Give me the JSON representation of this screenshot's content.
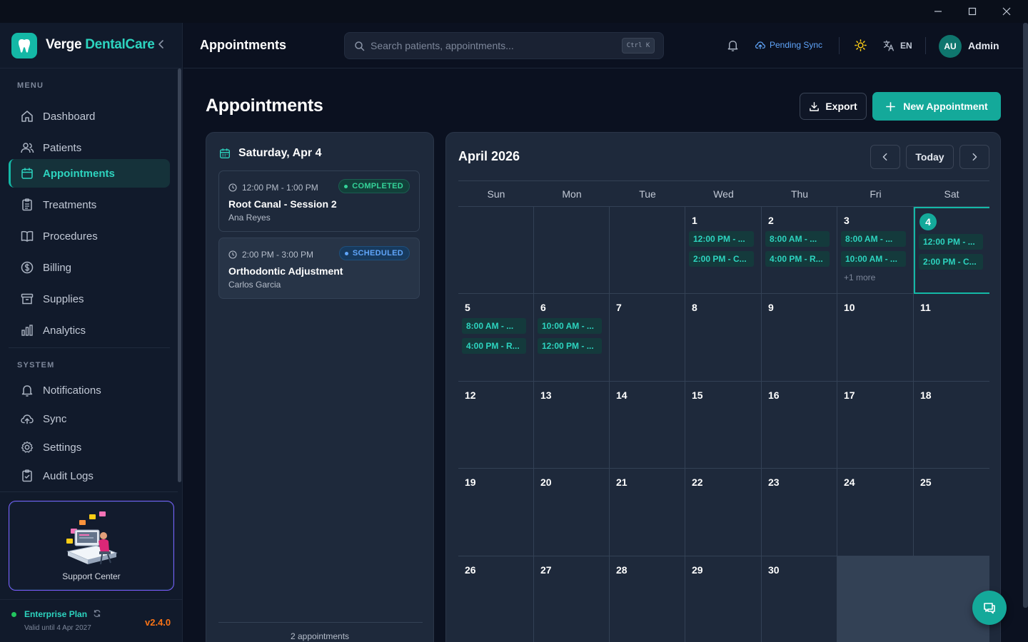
{
  "window": {
    "controls": [
      "minimize",
      "maximize",
      "close"
    ]
  },
  "brand": {
    "name_primary": "Verge",
    "name_accent": "DentalCare"
  },
  "sidebar": {
    "menu_label": "MENU",
    "menu_items": [
      {
        "label": "Dashboard",
        "icon": "home-icon"
      },
      {
        "label": "Patients",
        "icon": "users-icon"
      },
      {
        "label": "Appointments",
        "icon": "calendar-icon",
        "active": true
      },
      {
        "label": "Treatments",
        "icon": "clipboard-icon"
      },
      {
        "label": "Procedures",
        "icon": "book-icon"
      },
      {
        "label": "Billing",
        "icon": "dollar-icon"
      },
      {
        "label": "Supplies",
        "icon": "archive-icon"
      },
      {
        "label": "Analytics",
        "icon": "bar-chart-icon"
      }
    ],
    "system_label": "SYSTEM",
    "system_items": [
      {
        "label": "Notifications",
        "icon": "bell-icon"
      },
      {
        "label": "Sync",
        "icon": "cloud-upload-icon"
      },
      {
        "label": "Settings",
        "icon": "gear-icon"
      },
      {
        "label": "Audit Logs",
        "icon": "clipboard-check-icon"
      }
    ],
    "support_label": "Support Center",
    "plan_name": "Enterprise Plan",
    "plan_valid": "Valid until 4 Apr 2027",
    "version": "v2.4.0"
  },
  "header": {
    "title": "Appointments",
    "search_placeholder": "Search patients, appointments...",
    "search_shortcut": "Ctrl K",
    "sync_status": "Pending Sync",
    "language": "EN",
    "avatar_initials": "AU",
    "user_name": "Admin"
  },
  "main": {
    "title": "Appointments",
    "export_label": "Export",
    "new_label": "New Appointment"
  },
  "day_panel": {
    "date_label": "Saturday, Apr 4",
    "appointments": [
      {
        "time": "12:00 PM - 1:00 PM",
        "status": "COMPLETED",
        "title": "Root Canal - Session 2",
        "patient": "Ana Reyes"
      },
      {
        "time": "2:00 PM - 3:00 PM",
        "status": "SCHEDULED",
        "title": "Orthodontic Adjustment",
        "patient": "Carlos Garcia"
      }
    ],
    "footer": "2 appointments"
  },
  "calendar": {
    "month_label": "April 2026",
    "today_label": "Today",
    "weekdays": [
      "Sun",
      "Mon",
      "Tue",
      "Wed",
      "Thu",
      "Fri",
      "Sat"
    ],
    "selected_day": 4,
    "weeks": [
      [
        null,
        null,
        null,
        {
          "day": "1",
          "events": [
            "12:00 PM - ...",
            "2:00 PM - C..."
          ]
        },
        {
          "day": "2",
          "events": [
            "8:00 AM - ...",
            "4:00 PM - R..."
          ]
        },
        {
          "day": "3",
          "events": [
            "8:00 AM - ...",
            "10:00 AM - ..."
          ],
          "more": "+1 more"
        },
        {
          "day": "4",
          "events": [
            "12:00 PM - ...",
            "2:00 PM - C..."
          ],
          "selected": true
        }
      ],
      [
        {
          "day": "5",
          "events": [
            "8:00 AM - ...",
            "4:00 PM - R..."
          ]
        },
        {
          "day": "6",
          "events": [
            "10:00 AM - ...",
            "12:00 PM - ..."
          ]
        },
        {
          "day": "7",
          "events": []
        },
        {
          "day": "8",
          "events": []
        },
        {
          "day": "9",
          "events": []
        },
        {
          "day": "10",
          "events": []
        },
        {
          "day": "11",
          "events": []
        }
      ],
      [
        {
          "day": "12",
          "events": []
        },
        {
          "day": "13",
          "events": []
        },
        {
          "day": "14",
          "events": []
        },
        {
          "day": "15",
          "events": []
        },
        {
          "day": "16",
          "events": []
        },
        {
          "day": "17",
          "events": []
        },
        {
          "day": "18",
          "events": []
        }
      ],
      [
        {
          "day": "19",
          "events": []
        },
        {
          "day": "20",
          "events": []
        },
        {
          "day": "21",
          "events": []
        },
        {
          "day": "22",
          "events": []
        },
        {
          "day": "23",
          "events": []
        },
        {
          "day": "24",
          "events": []
        },
        {
          "day": "25",
          "events": []
        }
      ],
      [
        {
          "day": "26",
          "events": []
        },
        {
          "day": "27",
          "events": []
        },
        {
          "day": "28",
          "events": []
        },
        {
          "day": "29",
          "events": []
        },
        {
          "day": "30",
          "events": []
        },
        null,
        null
      ]
    ]
  },
  "colors": {
    "accent": "#14b8a6",
    "background": "#0b1120",
    "panel": "#1e293b",
    "completed": "#34d399",
    "scheduled": "#60a5fa",
    "version": "#f97316"
  }
}
